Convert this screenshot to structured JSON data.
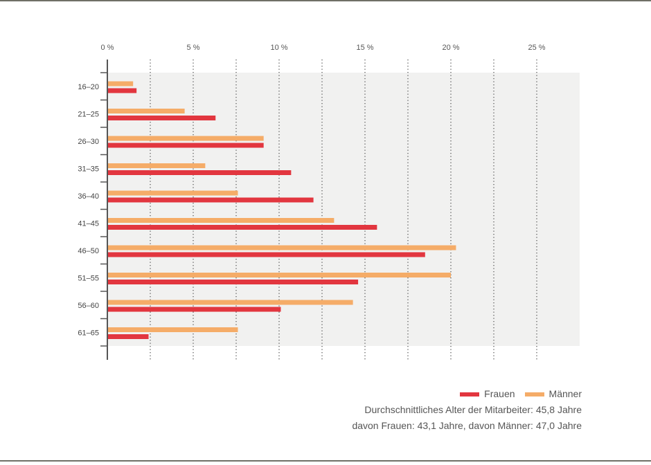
{
  "chart_data": {
    "type": "bar",
    "orientation": "horizontal",
    "categories": [
      "16–20",
      "21–25",
      "26–30",
      "31–35",
      "36–40",
      "41–45",
      "46–50",
      "51–55",
      "56–60",
      "61–65"
    ],
    "series": [
      {
        "name": "Männer",
        "color": "#f5ac68",
        "values": [
          1.5,
          4.5,
          9.1,
          5.7,
          7.6,
          13.2,
          20.3,
          20.0,
          14.3,
          7.6
        ]
      },
      {
        "name": "Frauen",
        "color": "#e2363f",
        "values": [
          1.7,
          6.3,
          9.1,
          10.7,
          12.0,
          15.7,
          18.5,
          14.6,
          10.1,
          2.4
        ]
      }
    ],
    "xlim": [
      0,
      27.5
    ],
    "xticks": [
      0,
      5,
      10,
      15,
      20,
      25
    ],
    "xtick_labels": [
      "0 %",
      "5 %",
      "10 %",
      "15 %",
      "20 %",
      "25 %"
    ],
    "dotted_gridlines_at": [
      2.5,
      5,
      7.5,
      10,
      12.5,
      15,
      17.5,
      20,
      22.5,
      25
    ],
    "grid": true,
    "xaxis_position": "top",
    "legend_position": "bottom-right",
    "title": "",
    "xlabel": "",
    "ylabel": ""
  },
  "legend": {
    "items": [
      {
        "label": "Frauen",
        "color": "#e2363f"
      },
      {
        "label": "Männer",
        "color": "#f5ac68"
      }
    ]
  },
  "notes": {
    "line1": "Durchschnittliches Alter der Mitarbeiter: 45,8 Jahre",
    "line2": "davon Frauen: 43,1 Jahre, davon Männer: 47,0 Jahre"
  }
}
